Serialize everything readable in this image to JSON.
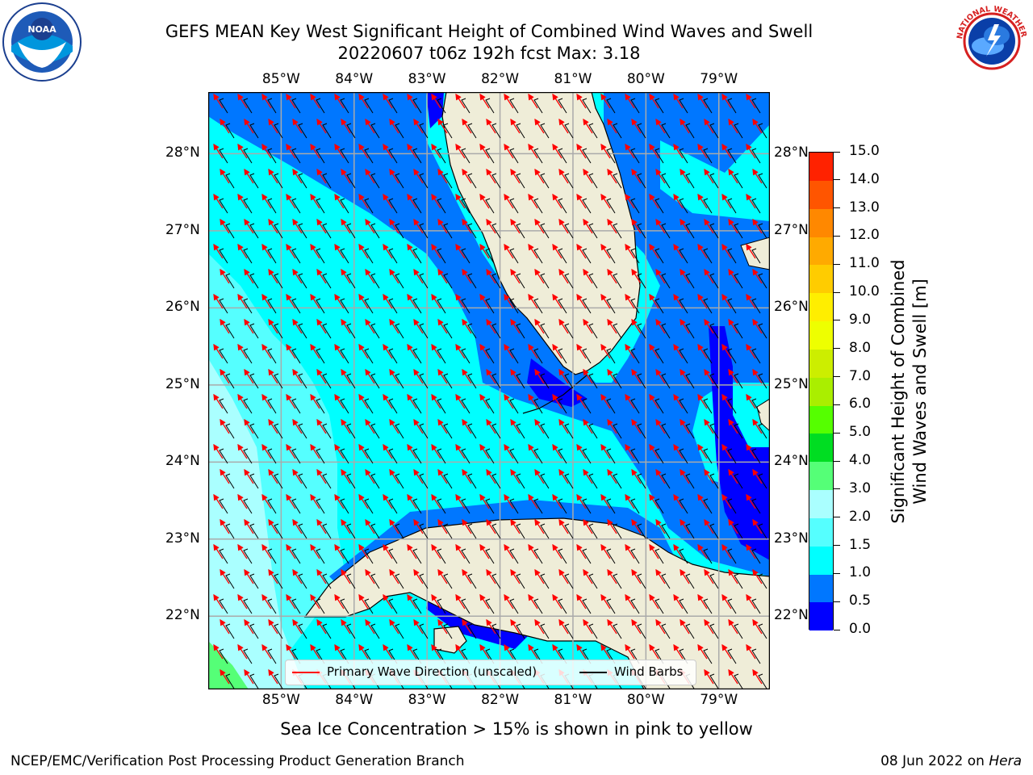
{
  "header": {
    "title_line1": "GEFS MEAN Key West Significant Height of Combined Wind Waves and Swell",
    "title_line2": "20220607 t06z 192h fcst   Max: 3.18"
  },
  "logos": {
    "left": {
      "name": "noaa-logo",
      "text": "NOAA",
      "ring_text": "NATIONAL OCEANIC AND ATMOSPHERIC ADMINISTRATION · U.S. DEPARTMENT OF COMMERCE"
    },
    "right": {
      "name": "nws-logo",
      "ring_text": "NATIONAL WEATHER SERVICE"
    }
  },
  "map": {
    "lon_labels": [
      "85°W",
      "84°W",
      "83°W",
      "82°W",
      "81°W",
      "80°W",
      "79°W"
    ],
    "lat_labels": [
      "28°N",
      "27°N",
      "26°N",
      "25°N",
      "24°N",
      "23°N",
      "22°N"
    ],
    "lon_values": [
      -85,
      -84,
      -83,
      -82,
      -81,
      -80,
      -79
    ],
    "lat_values": [
      28,
      27,
      26,
      25,
      24,
      23,
      22
    ],
    "extent": {
      "lon_min": -86.0,
      "lon_max": -78.3,
      "lat_min": 21.05,
      "lat_max": 28.8
    },
    "land_color": "#efedd8",
    "grid": true,
    "legend": {
      "wave_label": "Primary Wave Direction (unscaled)",
      "barb_label": "Wind Barbs",
      "wave_color": "#ff0000",
      "barb_color": "#000000",
      "placement": "bottom-center"
    }
  },
  "colorbar": {
    "title_line1": "Significant Height of Combined",
    "title_line2": "Wind Waves and Swell [m]",
    "tick_labels": [
      "0.0",
      "0.5",
      "1.0",
      "1.5",
      "2.0",
      "3.0",
      "4.0",
      "5.0",
      "6.0",
      "7.0",
      "8.0",
      "9.0",
      "10.0",
      "11.0",
      "12.0",
      "13.0",
      "14.0",
      "15.0"
    ],
    "colors": [
      "#0000ff",
      "#0077ff",
      "#00ffff",
      "#55ffff",
      "#aaffff",
      "#55ff77",
      "#00dd22",
      "#55ff00",
      "#aaee00",
      "#ccee00",
      "#eeff00",
      "#ffee00",
      "#ffcc00",
      "#ffaa00",
      "#ff8800",
      "#ff5500",
      "#ff2200"
    ]
  },
  "notes": {
    "ice": "Sea Ice Concentration > 15% is shown in pink to yellow",
    "footer_left": "NCEP/EMC/Verification Post Processing Product Generation Branch",
    "footer_date": "08 Jun 2022 on ",
    "footer_machine": "Hera"
  }
}
